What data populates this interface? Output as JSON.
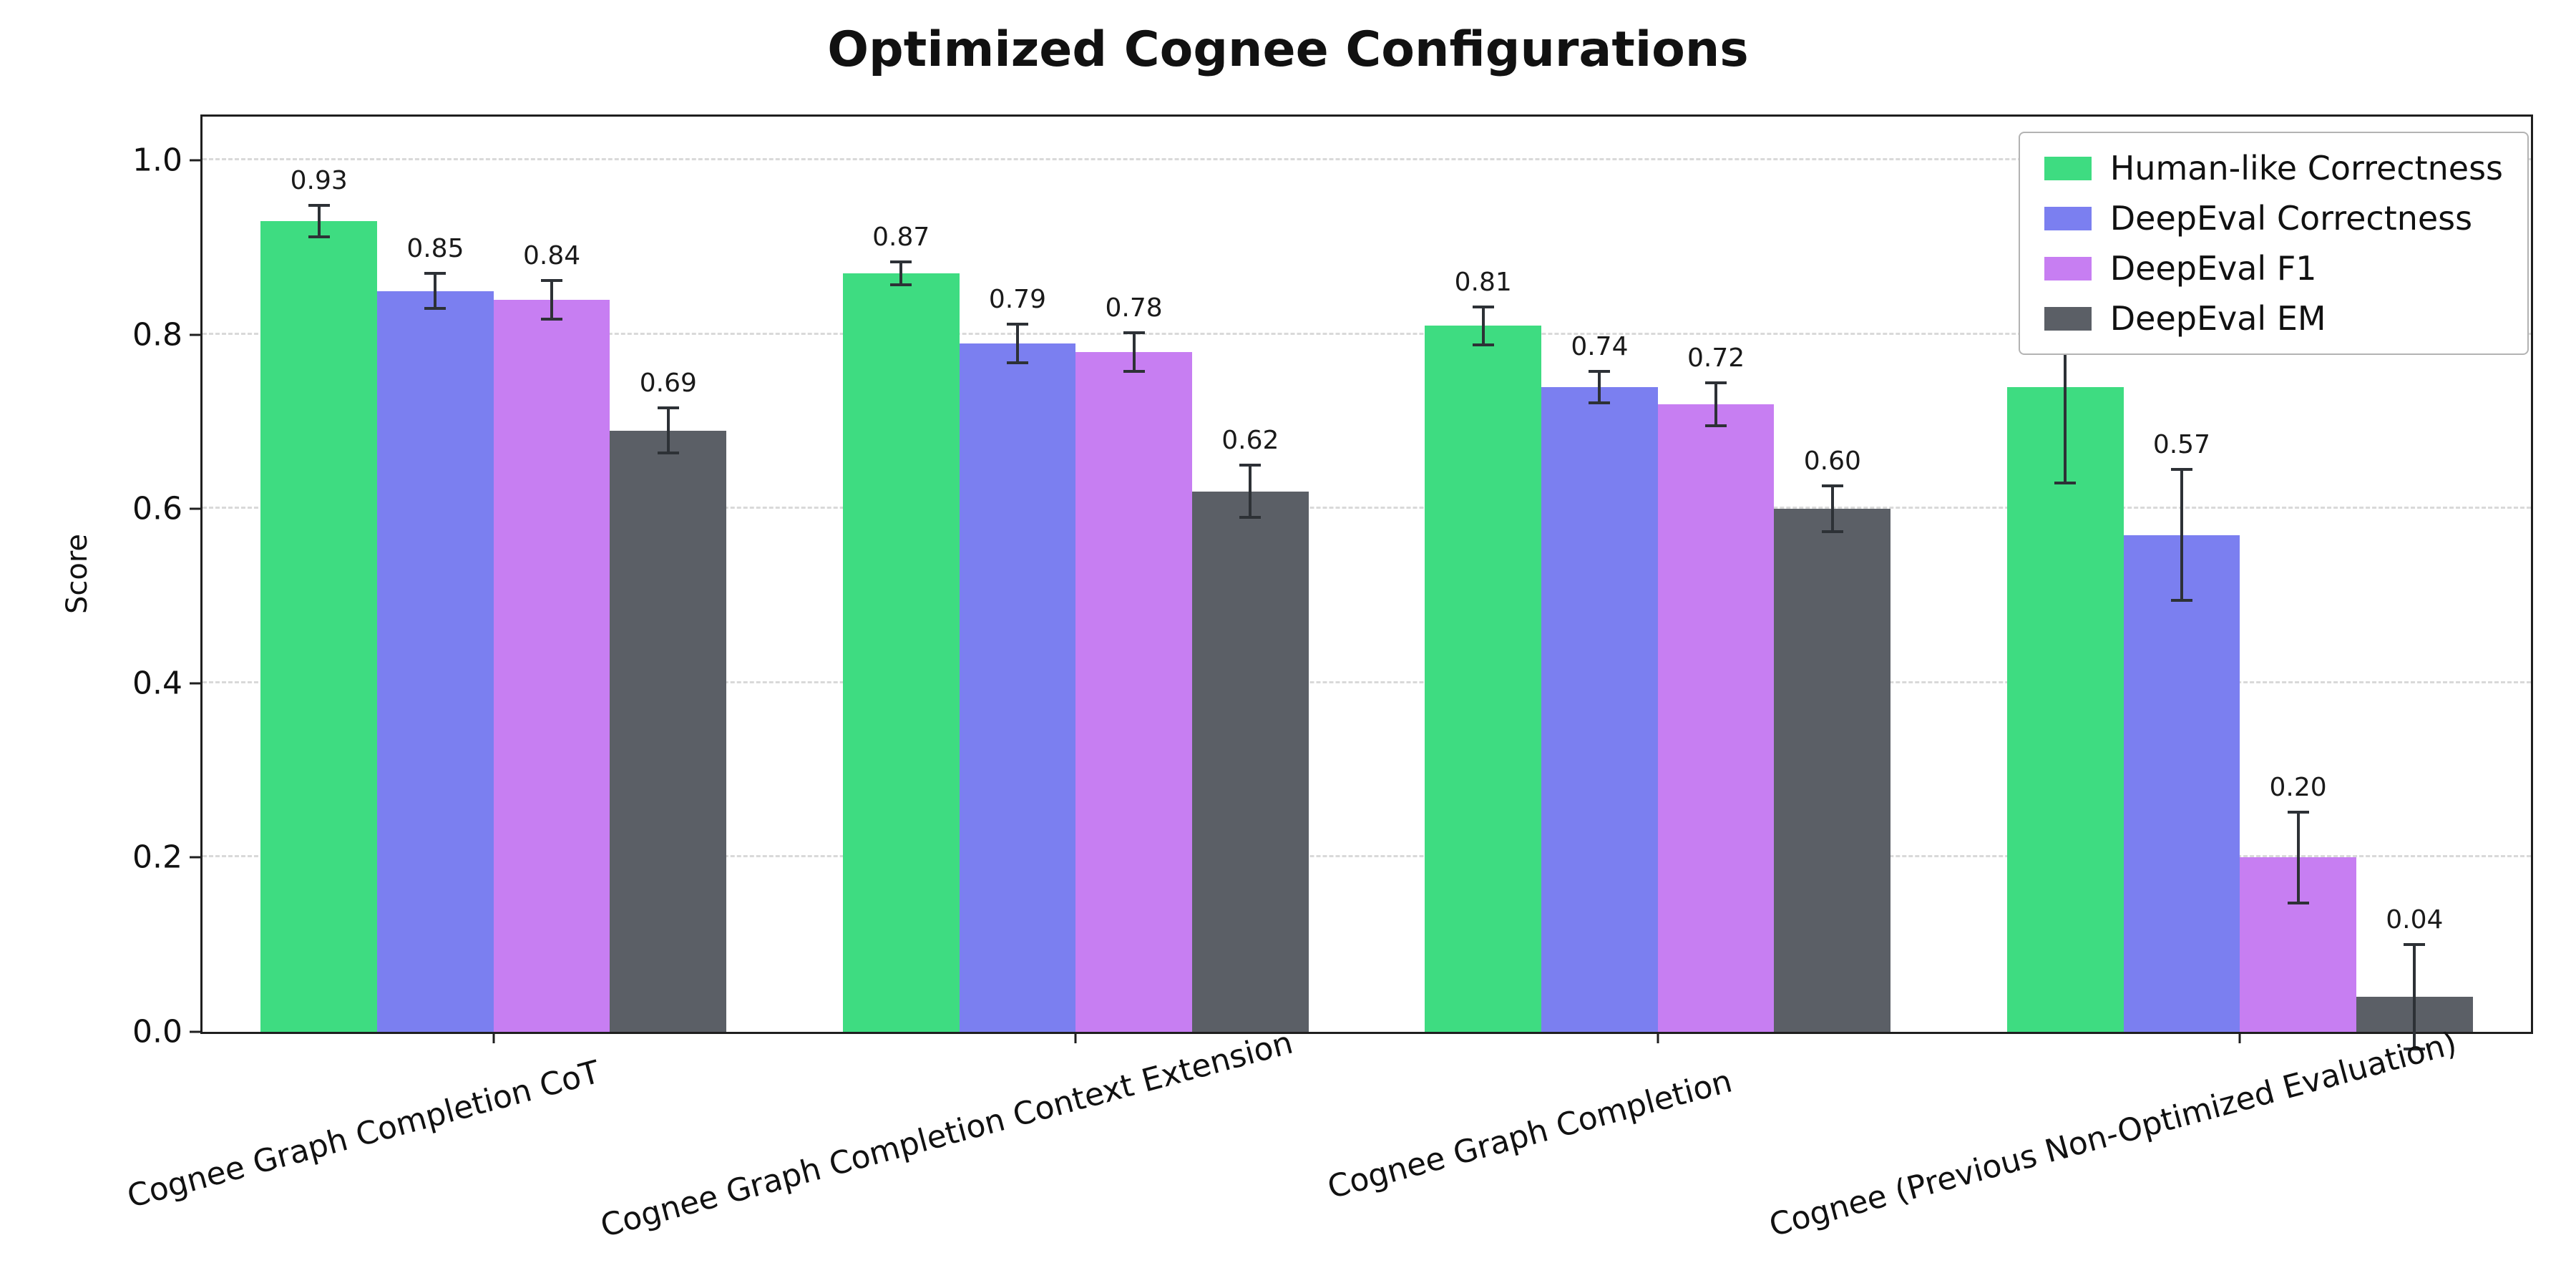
{
  "chart_data": {
    "type": "bar",
    "title": "Optimized Cognee Configurations",
    "xlabel": "",
    "ylabel": "Score",
    "ylim": [
      0.0,
      1.05
    ],
    "yticks": [
      0.0,
      0.2,
      0.4,
      0.6,
      0.8,
      1.0
    ],
    "grid": "horizontal-dashed",
    "legend_position": "upper-right",
    "background": "#ffffff",
    "grid_color": "#d9d9d9",
    "border_color": "#1f1f1f",
    "text_color": "#111111",
    "errorbar_color": "#2d3136",
    "categories": [
      "Cognee Graph Completion CoT",
      "Cognee Graph Completion Context Extension",
      "Cognee Graph Completion",
      "Cognee (Previous Non-Optimized Evaluation)"
    ],
    "series": [
      {
        "name": "Human-like Correctness",
        "color": "#3edc81",
        "values": [
          0.93,
          0.87,
          0.81,
          0.74
        ],
        "errors": [
          0.018,
          0.013,
          0.022,
          0.11
        ]
      },
      {
        "name": "DeepEval Correctness",
        "color": "#7b7ff0",
        "values": [
          0.85,
          0.79,
          0.74,
          0.57
        ],
        "errors": [
          0.02,
          0.022,
          0.018,
          0.075
        ]
      },
      {
        "name": "DeepEval F1",
        "color": "#c77ef2",
        "values": [
          0.84,
          0.78,
          0.72,
          0.2
        ],
        "errors": [
          0.022,
          0.022,
          0.025,
          0.052
        ]
      },
      {
        "name": "DeepEval EM",
        "color": "#5b5f66",
        "values": [
          0.69,
          0.62,
          0.6,
          0.04
        ],
        "errors": [
          0.026,
          0.03,
          0.026,
          0.06
        ]
      }
    ]
  }
}
